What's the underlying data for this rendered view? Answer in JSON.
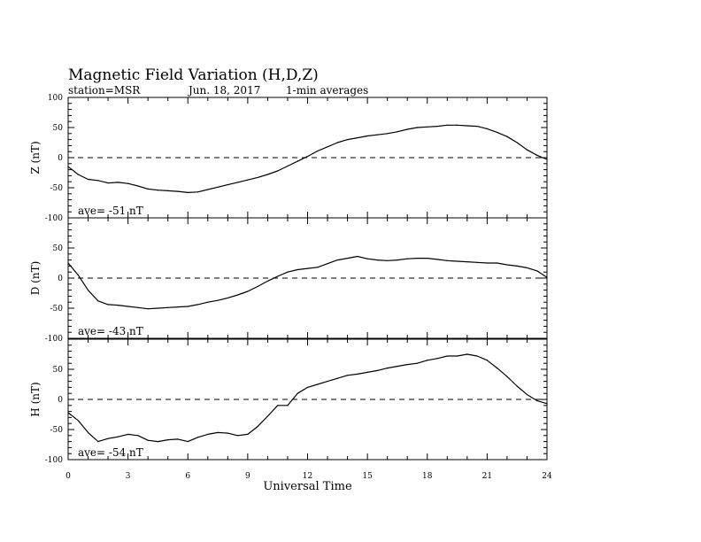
{
  "title": "Magnetic Field Variation (H,D,Z)",
  "station": "station=MSR",
  "date": "Jun. 18, 2017",
  "averaging": "1-min averages",
  "xlabel": "Universal Time",
  "chart_data": [
    {
      "type": "line",
      "ylabel": "Z (nT)",
      "ylim": [
        -100,
        100
      ],
      "yticks": [
        100,
        50,
        0,
        -50,
        -100
      ],
      "ave_label": "ave= -51   nT",
      "x": [
        0,
        0.5,
        1,
        1.5,
        2,
        2.5,
        3,
        3.5,
        4,
        4.5,
        5,
        5.5,
        6,
        6.5,
        7,
        7.5,
        8,
        8.5,
        9,
        9.5,
        10,
        10.5,
        11,
        11.5,
        12,
        12.5,
        13,
        13.5,
        14,
        14.5,
        15,
        15.5,
        16,
        16.5,
        17,
        17.5,
        18,
        18.5,
        19,
        19.5,
        20,
        20.5,
        21,
        21.5,
        22,
        22.5,
        23,
        23.5,
        24
      ],
      "y": [
        -15,
        -28,
        -36,
        -38,
        -42,
        -41,
        -43,
        -47,
        -52,
        -54,
        -55,
        -56,
        -58,
        -57,
        -53,
        -49,
        -45,
        -41,
        -37,
        -33,
        -28,
        -22,
        -14,
        -6,
        2,
        11,
        18,
        25,
        30,
        33,
        36,
        38,
        40,
        43,
        47,
        50,
        51,
        52,
        54,
        54,
        53,
        52,
        48,
        42,
        35,
        25,
        13,
        4,
        -3
      ]
    },
    {
      "type": "line",
      "ylabel": "D (nT)",
      "ylim": [
        -100,
        100
      ],
      "yticks": [
        100,
        50,
        0,
        -50,
        -100
      ],
      "ave_label": "ave= -43   nT",
      "x": [
        0,
        0.5,
        1,
        1.5,
        2,
        2.5,
        3,
        3.5,
        4,
        4.5,
        5,
        5.5,
        6,
        6.5,
        7,
        7.5,
        8,
        8.5,
        9,
        9.5,
        10,
        10.5,
        11,
        11.5,
        12,
        12.5,
        13,
        13.5,
        14,
        14.5,
        15,
        15.5,
        16,
        16.5,
        17,
        17.5,
        18,
        18.5,
        19,
        19.5,
        20,
        20.5,
        21,
        21.5,
        22,
        22.5,
        23,
        23.5,
        24
      ],
      "y": [
        25,
        5,
        -20,
        -38,
        -44,
        -45,
        -47,
        -49,
        -51,
        -50,
        -49,
        -48,
        -47,
        -44,
        -40,
        -37,
        -33,
        -28,
        -22,
        -14,
        -5,
        3,
        10,
        14,
        16,
        18,
        24,
        30,
        33,
        36,
        32,
        30,
        29,
        30,
        32,
        33,
        33,
        31,
        29,
        28,
        27,
        26,
        25,
        25,
        22,
        20,
        17,
        12,
        1
      ]
    },
    {
      "type": "line",
      "ylabel": "H (nT)",
      "ylim": [
        -100,
        100
      ],
      "yticks": [
        100,
        50,
        0,
        -50,
        -100
      ],
      "ave_label": "ave= -54   nT",
      "x": [
        0,
        0.5,
        1,
        1.5,
        2,
        2.5,
        3,
        3.5,
        4,
        4.5,
        5,
        5.5,
        6,
        6.5,
        7,
        7.5,
        8,
        8.5,
        9,
        9.5,
        10,
        10.5,
        11,
        11.5,
        12,
        12.5,
        13,
        13.5,
        14,
        14.5,
        15,
        15.5,
        16,
        16.5,
        17,
        17.5,
        18,
        18.5,
        19,
        19.5,
        20,
        20.5,
        21,
        21.5,
        22,
        22.5,
        23,
        23.5,
        24
      ],
      "y": [
        -22,
        -35,
        -55,
        -70,
        -65,
        -62,
        -58,
        -60,
        -68,
        -70,
        -67,
        -66,
        -70,
        -63,
        -58,
        -55,
        -56,
        -60,
        -58,
        -45,
        -28,
        -10,
        -10,
        10,
        20,
        25,
        30,
        35,
        40,
        42,
        45,
        48,
        52,
        55,
        58,
        60,
        65,
        68,
        72,
        72,
        75,
        72,
        65,
        52,
        38,
        22,
        8,
        -2,
        -7
      ]
    }
  ],
  "xaxis": {
    "xlim": [
      0,
      24
    ],
    "ticks": [
      0,
      3,
      6,
      9,
      12,
      15,
      18,
      21,
      24
    ]
  }
}
